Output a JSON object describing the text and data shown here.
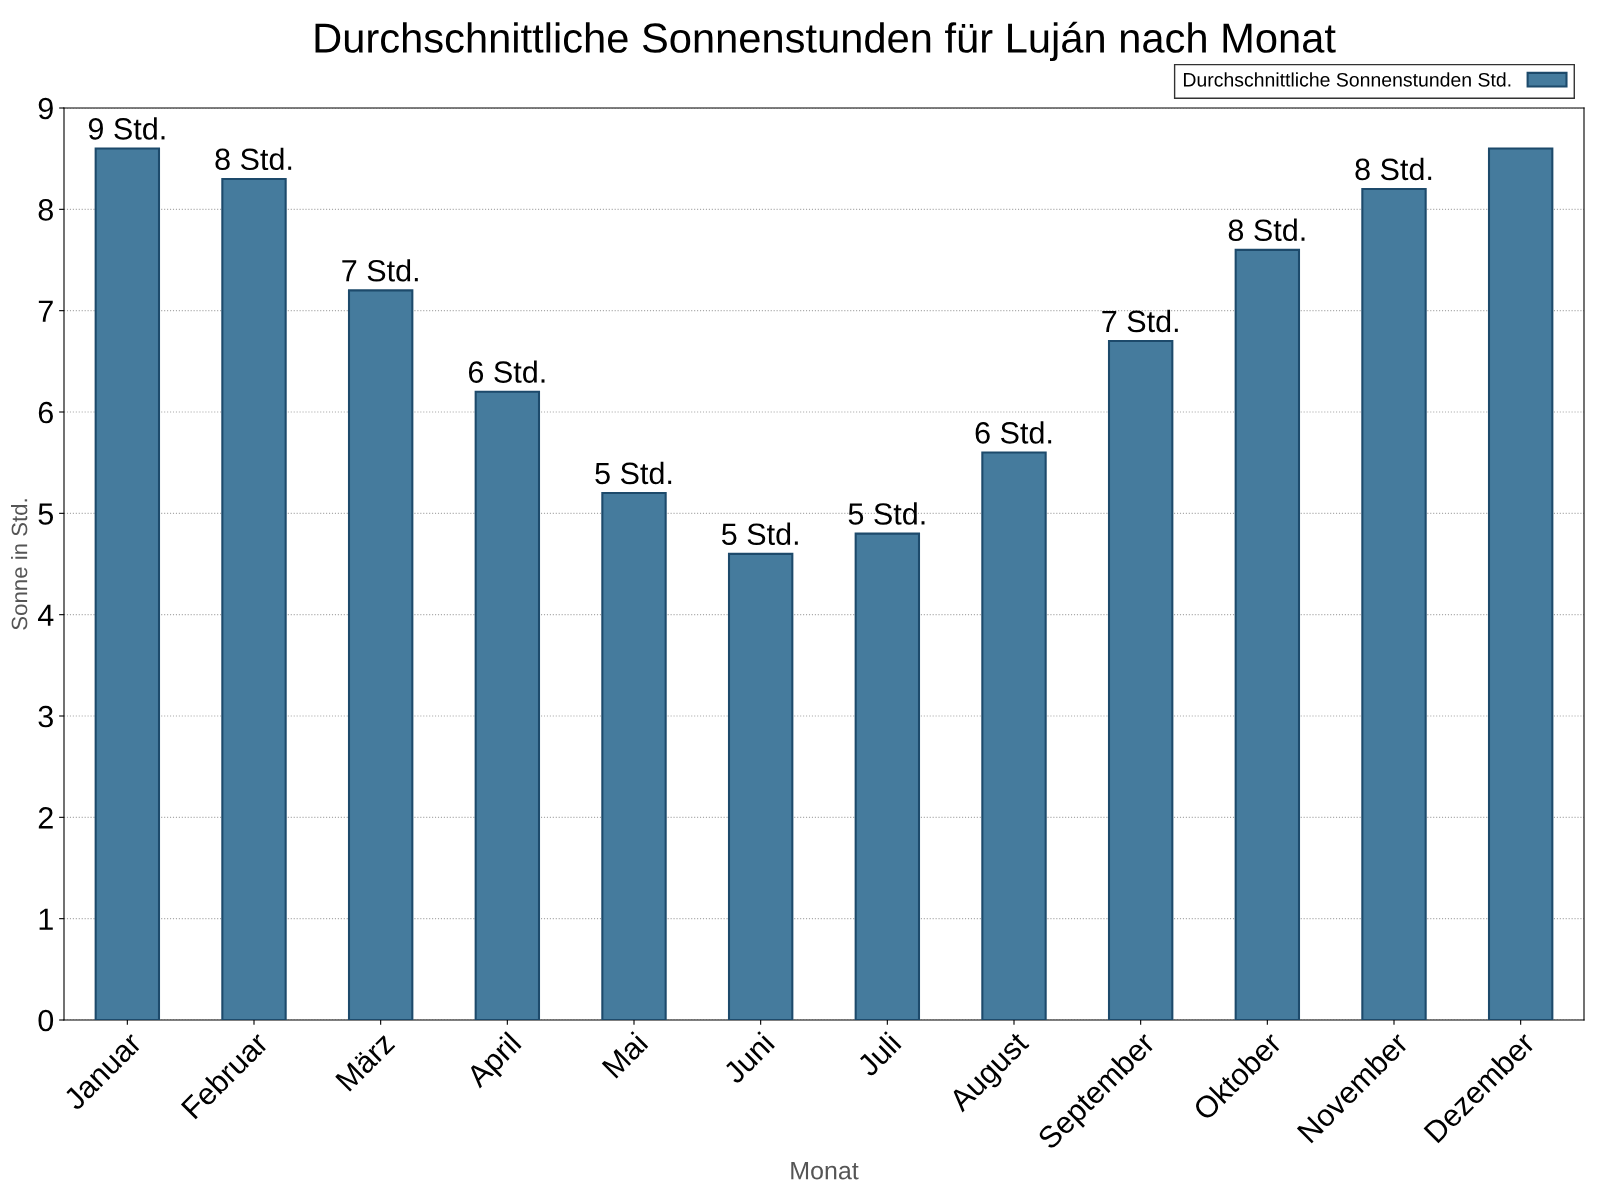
{
  "chart_data": {
    "type": "bar",
    "title": "Durchschnittliche Sonnenstunden für Luján nach Monat",
    "xlabel": "Monat",
    "ylabel": "Sonne in Std.",
    "categories": [
      "Januar",
      "Februar",
      "März",
      "April",
      "Mai",
      "Juni",
      "Juli",
      "August",
      "September",
      "Oktober",
      "November",
      "Dezember"
    ],
    "series": [
      {
        "name": "Durchschnittliche Sonnenstunden Std.",
        "color": "#457b9d",
        "values": [
          8.6,
          8.3,
          7.2,
          6.2,
          5.2,
          4.6,
          4.8,
          5.6,
          6.7,
          7.6,
          8.2,
          8.6
        ],
        "value_labels": [
          "9 Std.",
          "8 Std.",
          "7 Std.",
          "6 Std.",
          "5 Std.",
          "5 Std.",
          "5 Std.",
          "6 Std.",
          "7 Std.",
          "8 Std.",
          "8 Std.",
          null
        ]
      }
    ],
    "ylim": [
      0,
      9
    ],
    "yticks": [
      0,
      1,
      2,
      3,
      4,
      5,
      6,
      7,
      8,
      9
    ],
    "grid": "y",
    "legend": "top right"
  }
}
